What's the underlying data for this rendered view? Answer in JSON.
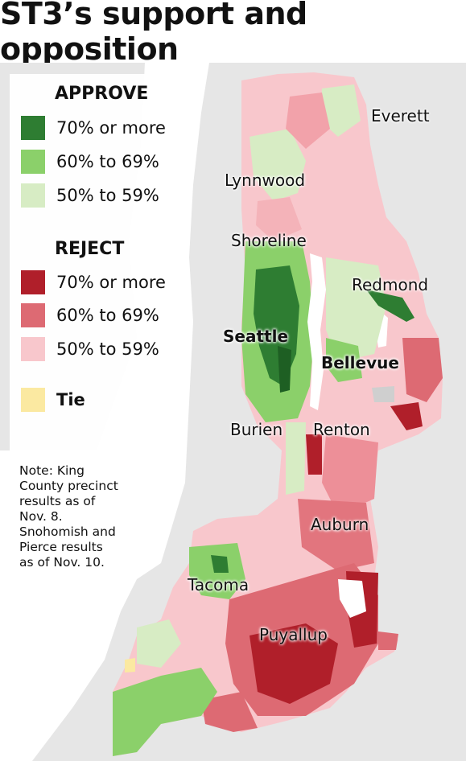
{
  "title": "ST3’s support and opposition",
  "legend": {
    "approve_title": "APPROVE",
    "approve_items": [
      {
        "label": "70% or more",
        "color": "#2e7d32"
      },
      {
        "label": "60% to 69%",
        "color": "#8bd06a"
      },
      {
        "label": "50% to 59%",
        "color": "#d7ecc4"
      }
    ],
    "reject_title": "REJECT",
    "reject_items": [
      {
        "label": "70% or more",
        "color": "#b01f2a"
      },
      {
        "label": "60% to 69%",
        "color": "#dd6a73"
      },
      {
        "label": "50% to 59%",
        "color": "#f8c7cc"
      }
    ],
    "tie": {
      "label": "Tie",
      "color": "#fbe9a1"
    }
  },
  "note": {
    "lines": [
      "Note: King",
      "County precinct",
      "results as of",
      "Nov. 8.",
      "Snohomish and",
      "Pierce results",
      "as of Nov. 10."
    ]
  },
  "cities": {
    "everett": "Everett",
    "lynnwood": "Lynnwood",
    "shoreline": "Shoreline",
    "redmond": "Redmond",
    "seattle": "Seattle",
    "bellevue": "Bellevue",
    "burien": "Burien",
    "renton": "Renton",
    "auburn": "Auburn",
    "tacoma": "Tacoma",
    "puyallup": "Puyallup"
  },
  "colors": {
    "land_background": "#e6e6e6",
    "water": "#ffffff"
  }
}
